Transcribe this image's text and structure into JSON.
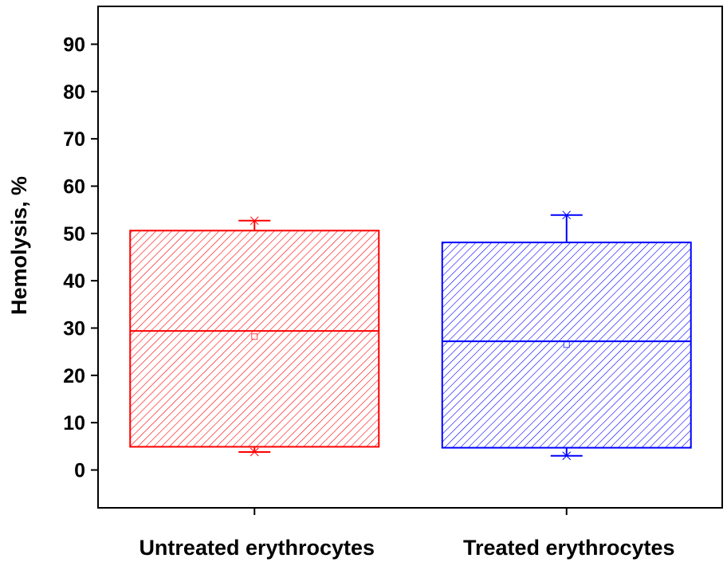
{
  "chart_data": {
    "type": "box",
    "title": "",
    "xlabel": "",
    "ylabel": "Hemolysis, %",
    "ylim": [
      -8,
      98
    ],
    "yticks": [
      0,
      10,
      20,
      30,
      40,
      50,
      60,
      70,
      80,
      90
    ],
    "grid": false,
    "categories": [
      "Untreated erythrocytes",
      "Treated erythrocytes"
    ],
    "series": [
      {
        "category": "Untreated erythrocytes",
        "color": "#ff0000",
        "min": 3.8,
        "q1": 4.9,
        "median": 29.4,
        "mean": 28.2,
        "q3": 50.6,
        "max": 52.7
      },
      {
        "category": "Treated erythrocytes",
        "color": "#0000ff",
        "min": 3.0,
        "q1": 4.7,
        "median": 27.2,
        "mean": 26.5,
        "q3": 48.1,
        "max": 53.9
      }
    ]
  }
}
